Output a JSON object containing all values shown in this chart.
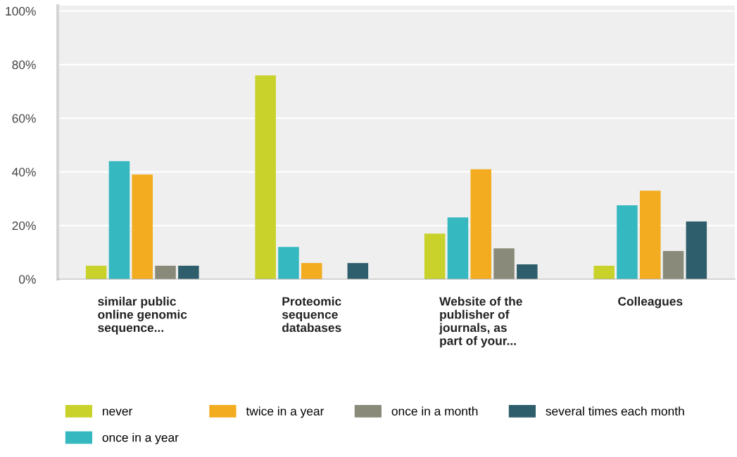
{
  "chart_data": {
    "type": "bar",
    "categories": [
      "similar public\nonline genomic\nsequence...",
      "Proteomic\nsequence\ndatabases",
      "Website of the\npublisher of\njournals, as\npart of your...",
      "Colleagues"
    ],
    "series": [
      {
        "name": "never",
        "color": "#c9d22a",
        "values": [
          5,
          76,
          17,
          5
        ]
      },
      {
        "name": "once in a year",
        "color": "#35b8c0",
        "values": [
          44,
          12,
          23,
          27.5
        ]
      },
      {
        "name": "twice in a year",
        "color": "#f3ac1f",
        "values": [
          39,
          6,
          41,
          33
        ]
      },
      {
        "name": "once in a month",
        "color": "#8a8a7a",
        "values": [
          5,
          0,
          11.5,
          10.5
        ]
      },
      {
        "name": "several times each month",
        "color": "#2e5d6b",
        "values": [
          5,
          6,
          5.5,
          21.5
        ]
      }
    ],
    "ylim": [
      0,
      102
    ],
    "yticks": [
      {
        "value": 0,
        "label": "0%"
      },
      {
        "value": 20,
        "label": "20%"
      },
      {
        "value": 40,
        "label": "40%"
      },
      {
        "value": 60,
        "label": "60%"
      },
      {
        "value": 80,
        "label": "80%"
      },
      {
        "value": 100,
        "label": "100%"
      }
    ],
    "grid": "y",
    "legend": "bottom left"
  }
}
